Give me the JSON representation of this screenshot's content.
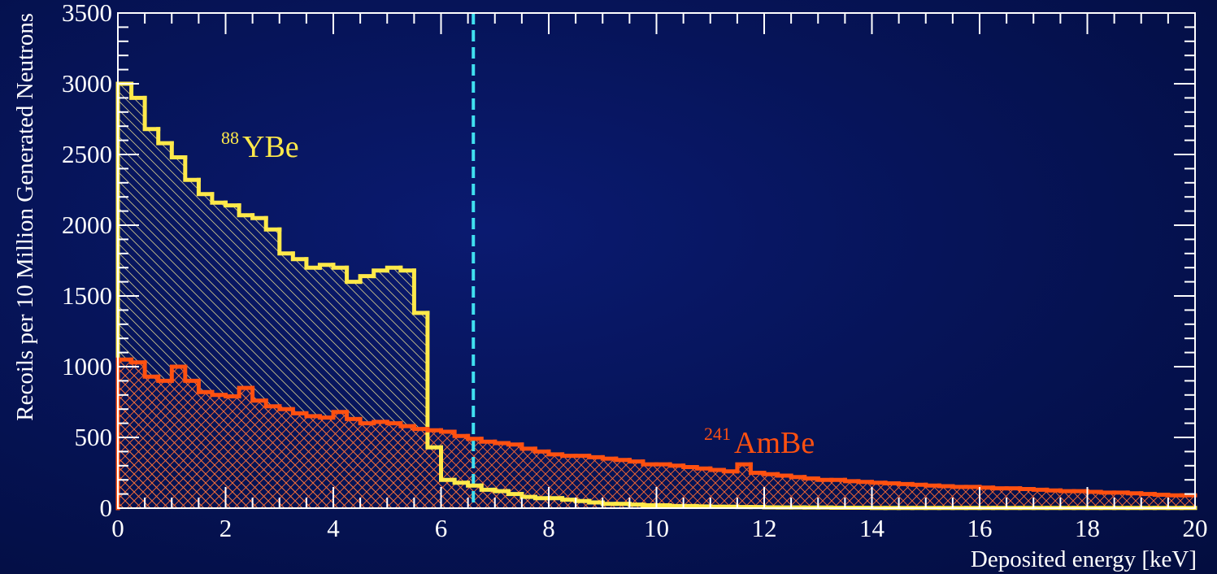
{
  "chart_data": {
    "type": "histogram",
    "xlabel": "Deposited energy [keV]",
    "ylabel": "Recoils per 10 Million Generated Neutrons",
    "xlim": [
      0,
      20
    ],
    "ylim": [
      0,
      3500
    ],
    "xticks": [
      0,
      2,
      4,
      6,
      8,
      10,
      12,
      14,
      16,
      18,
      20
    ],
    "yticks": [
      0,
      500,
      1000,
      1500,
      2000,
      2500,
      3000,
      3500
    ],
    "bin_width": 0.25,
    "threshold_line": {
      "x": 6.6,
      "color": "#40e0f0",
      "style": "dashed"
    },
    "series": [
      {
        "name_sup": "88",
        "name_main": "YBe",
        "color": "#ffe94a",
        "hatch": "single",
        "values": [
          3000,
          2900,
          2680,
          2580,
          2480,
          2320,
          2220,
          2160,
          2140,
          2070,
          2050,
          1970,
          1800,
          1760,
          1700,
          1720,
          1700,
          1600,
          1640,
          1680,
          1700,
          1680,
          1380,
          430,
          200,
          180,
          160,
          130,
          120,
          100,
          80,
          70,
          70,
          60,
          50,
          40,
          30,
          30,
          25,
          20,
          20,
          15,
          15,
          12,
          10,
          10,
          8,
          8,
          6,
          5,
          5,
          4,
          4,
          3,
          3,
          3,
          2,
          2,
          2,
          2,
          2,
          1,
          1,
          1,
          1,
          1,
          1,
          1,
          1,
          1,
          1,
          1,
          1,
          1,
          1,
          1,
          1,
          1,
          1,
          1
        ]
      },
      {
        "name_sup": "241",
        "name_main": "AmBe",
        "color": "#ff5010",
        "hatch": "cross",
        "values": [
          1050,
          1030,
          930,
          900,
          1000,
          900,
          820,
          800,
          790,
          850,
          760,
          720,
          700,
          670,
          650,
          640,
          680,
          630,
          600,
          610,
          600,
          580,
          560,
          550,
          540,
          510,
          490,
          470,
          460,
          450,
          420,
          400,
          380,
          370,
          370,
          360,
          350,
          340,
          330,
          310,
          310,
          300,
          290,
          280,
          270,
          260,
          310,
          250,
          240,
          230,
          220,
          210,
          200,
          200,
          190,
          185,
          180,
          175,
          170,
          165,
          160,
          155,
          150,
          150,
          145,
          140,
          140,
          135,
          130,
          125,
          120,
          120,
          115,
          110,
          110,
          105,
          100,
          95,
          90,
          90
        ]
      }
    ]
  }
}
